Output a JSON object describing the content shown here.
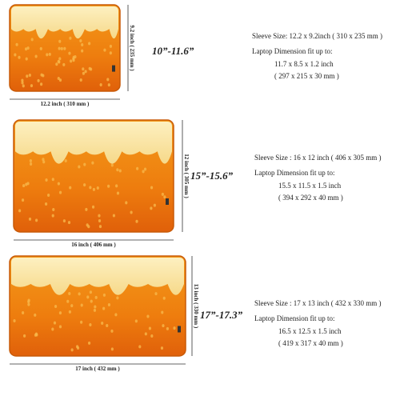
{
  "sleeves": [
    {
      "width_label": "12.2 inch ( 310 mm )",
      "height_label": "9.2 inch ( 235 mm )",
      "size": "10”-11.6”",
      "sleeve_size": "Sleeve Size: 12.2 x 9.2inch ( 310 x 235 mm )",
      "fit_heading": "Laptop Dimension fit up to:",
      "fit_inch": "11.7 x 8.5 x 1.2 inch",
      "fit_mm": "( 297 x 215 x 30 mm )"
    },
    {
      "width_label": "16 inch ( 406 mm )",
      "height_label": "12 inch ( 305 mm )",
      "size": "15”-15.6”",
      "sleeve_size": "Sleeve Size : 16 x 12 inch ( 406 x 305 mm )",
      "fit_heading": "Laptop Dimension fit up to:",
      "fit_inch": "15.5 x 11.5 x 1.5 inch",
      "fit_mm": "( 394 x 292 x 40 mm )"
    },
    {
      "width_label": "17 inch ( 432 mm )",
      "height_label": "13 inch ( 330 mm )",
      "size": "17”-17.3”",
      "sleeve_size": "Sleeve Size : 17 x 13 inch ( 432 x 330 mm )",
      "fit_heading": "Laptop Dimension fit up to:",
      "fit_inch": "16.5 x 12.5 x 1.5 inch",
      "fit_mm": "( 419 x 317 x 40 mm )"
    }
  ]
}
